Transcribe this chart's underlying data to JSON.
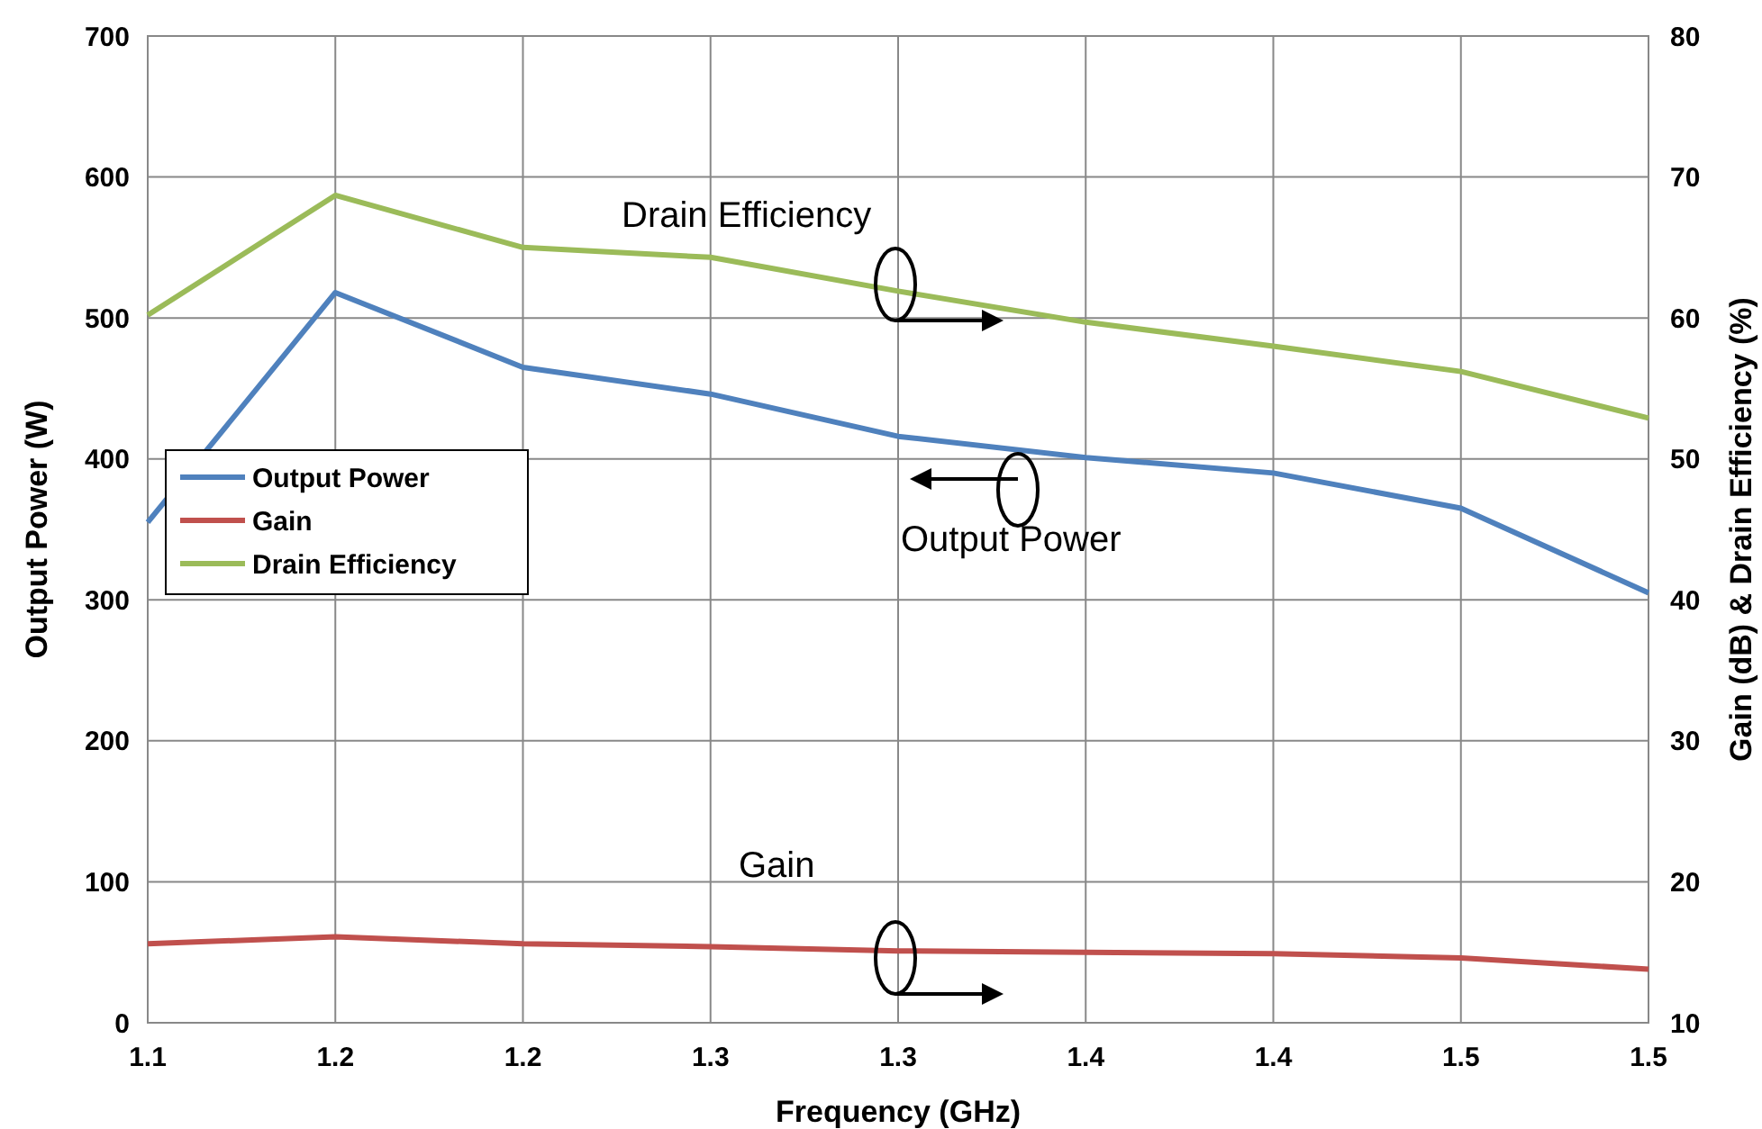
{
  "chart_data": {
    "type": "line",
    "xlabel": "Frequency (GHz)",
    "ylabel": "Output Power (W)",
    "y2label": "Gain (dB) & Drain Efficiency (%)",
    "categories": [
      "1.1",
      "1.2",
      "1.2",
      "1.3",
      "1.3",
      "1.4",
      "1.4",
      "1.5",
      "1.5"
    ],
    "series": [
      {
        "name": "Output Power",
        "color": "#4f81bd",
        "values": [
          355,
          518,
          465,
          446,
          416,
          401,
          390,
          365,
          305
        ]
      },
      {
        "name": "Gain",
        "color": "#c0504d",
        "axis": "y2",
        "values": [
          15.6,
          16.1,
          15.6,
          15.4,
          15.1,
          15.0,
          14.9,
          14.6,
          13.8
        ]
      },
      {
        "name": "Drain Efficiency",
        "color": "#9bbb59",
        "axis": "y2",
        "values": [
          60.2,
          68.7,
          65.0,
          64.3,
          61.9,
          59.7,
          58.0,
          56.2,
          52.9
        ]
      }
    ],
    "ylim": [
      0,
      700
    ],
    "yticks": [
      0,
      100,
      200,
      300,
      400,
      500,
      600,
      700
    ],
    "y2lim": [
      10,
      80
    ],
    "y2ticks": [
      10,
      20,
      30,
      40,
      50,
      60,
      70,
      80
    ],
    "grid": true,
    "legend": "left",
    "marker": "none",
    "line_style": "solid",
    "annotations": [
      "Drain Efficiency",
      "Output Power",
      "Gain"
    ]
  }
}
